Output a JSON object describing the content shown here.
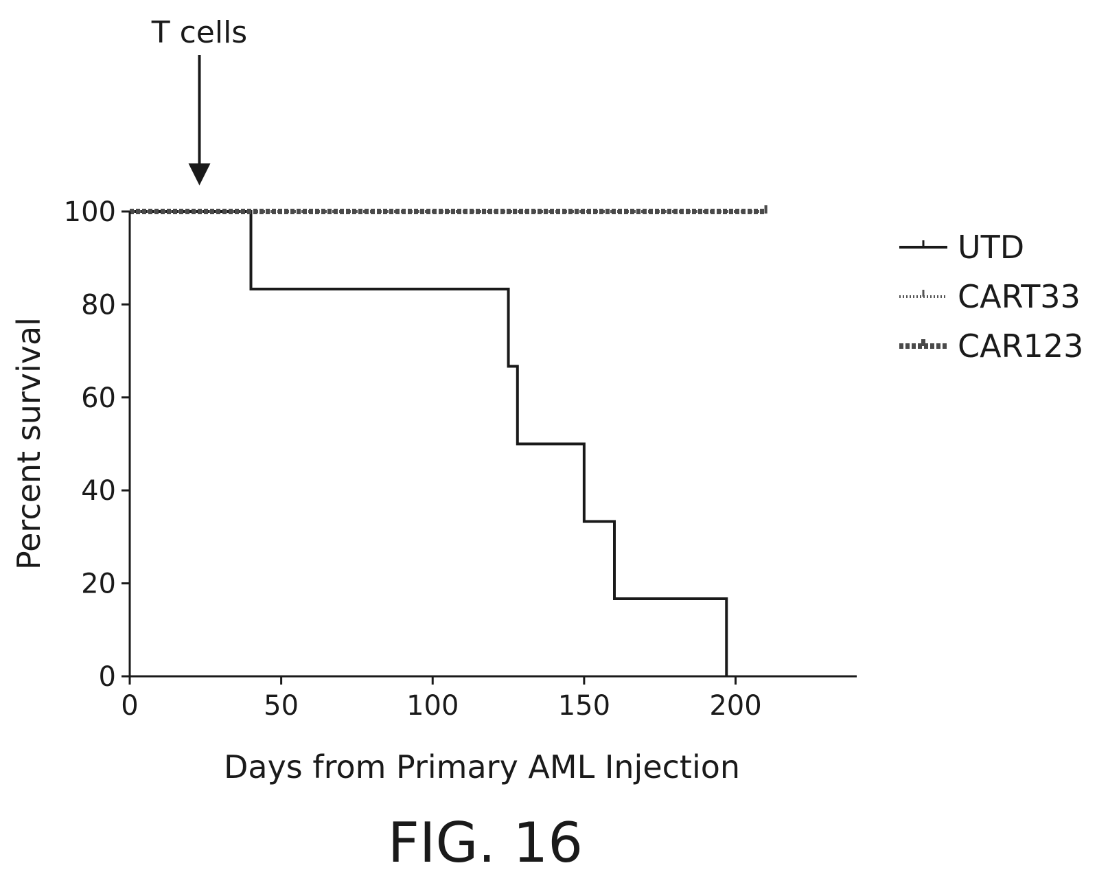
{
  "chart_data": {
    "type": "line",
    "subtype": "kaplan-meier-survival",
    "title": "",
    "xlabel": "Days from Primary AML Injection",
    "ylabel": "Percent survival",
    "xlim": [
      0,
      240
    ],
    "ylim": [
      0,
      100
    ],
    "xticks": [
      0,
      50,
      100,
      150,
      200
    ],
    "yticks": [
      0,
      20,
      40,
      60,
      80,
      100
    ],
    "grid": false,
    "legend_position": "right",
    "series": [
      {
        "name": "UTD",
        "style": "solid",
        "color": "#1a1a1a",
        "x": [
          0,
          40,
          125,
          128,
          150,
          160,
          197
        ],
        "y": [
          100,
          83.3,
          66.7,
          50,
          33.3,
          16.7,
          0
        ],
        "end_x": 197
      },
      {
        "name": "CART33",
        "style": "dotted",
        "color": "#555555",
        "x": [
          0
        ],
        "y": [
          100
        ],
        "end_x": 210
      },
      {
        "name": "CAR123",
        "style": "dashed",
        "color": "#4a4a4a",
        "x": [
          0
        ],
        "y": [
          100
        ],
        "end_x": 210
      }
    ],
    "annotations": [
      {
        "text": "T cells",
        "x": 23
      }
    ]
  },
  "caption": "FIG. 16"
}
